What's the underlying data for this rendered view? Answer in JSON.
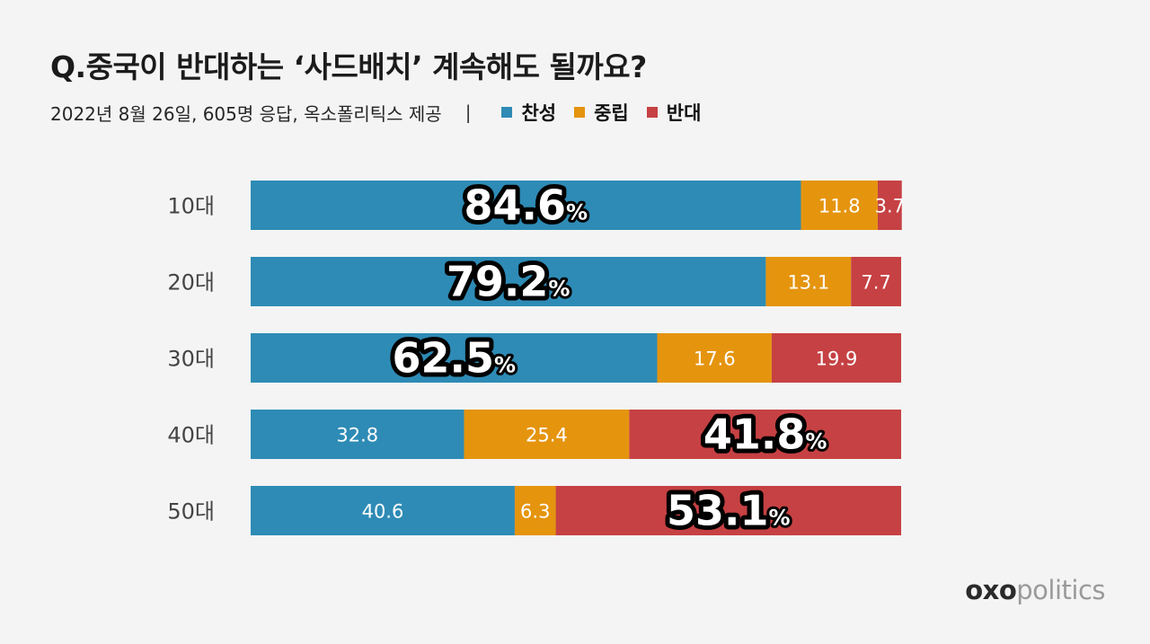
{
  "title": "Q.중국이 반대하는 ‘사드배치’ 계속해도 될까요?",
  "subtitle": "2022년 8월 26일, 605명 응답, 옥소폴리틱스 제공",
  "divider": "|",
  "legend": [
    {
      "label": "찬성",
      "color": "#2e8bb5"
    },
    {
      "label": "중립",
      "color": "#e5940e"
    },
    {
      "label": "반대",
      "color": "#c64143"
    }
  ],
  "brand": {
    "part1": "oxo",
    "part2": "politics"
  },
  "chart_data": {
    "type": "bar",
    "orientation": "horizontal",
    "stacked": true,
    "categories": [
      "10대",
      "20대",
      "30대",
      "40대",
      "50대"
    ],
    "series": [
      {
        "name": "찬성",
        "color": "#2e8bb5",
        "values": [
          84.6,
          79.2,
          62.5,
          32.8,
          40.6
        ]
      },
      {
        "name": "중립",
        "color": "#e5940e",
        "values": [
          11.8,
          13.1,
          17.6,
          25.4,
          6.3
        ]
      },
      {
        "name": "반대",
        "color": "#c64143",
        "values": [
          3.7,
          7.7,
          19.9,
          41.8,
          53.1
        ]
      }
    ],
    "highlight_unit": "%",
    "xlim": [
      0,
      100
    ]
  }
}
